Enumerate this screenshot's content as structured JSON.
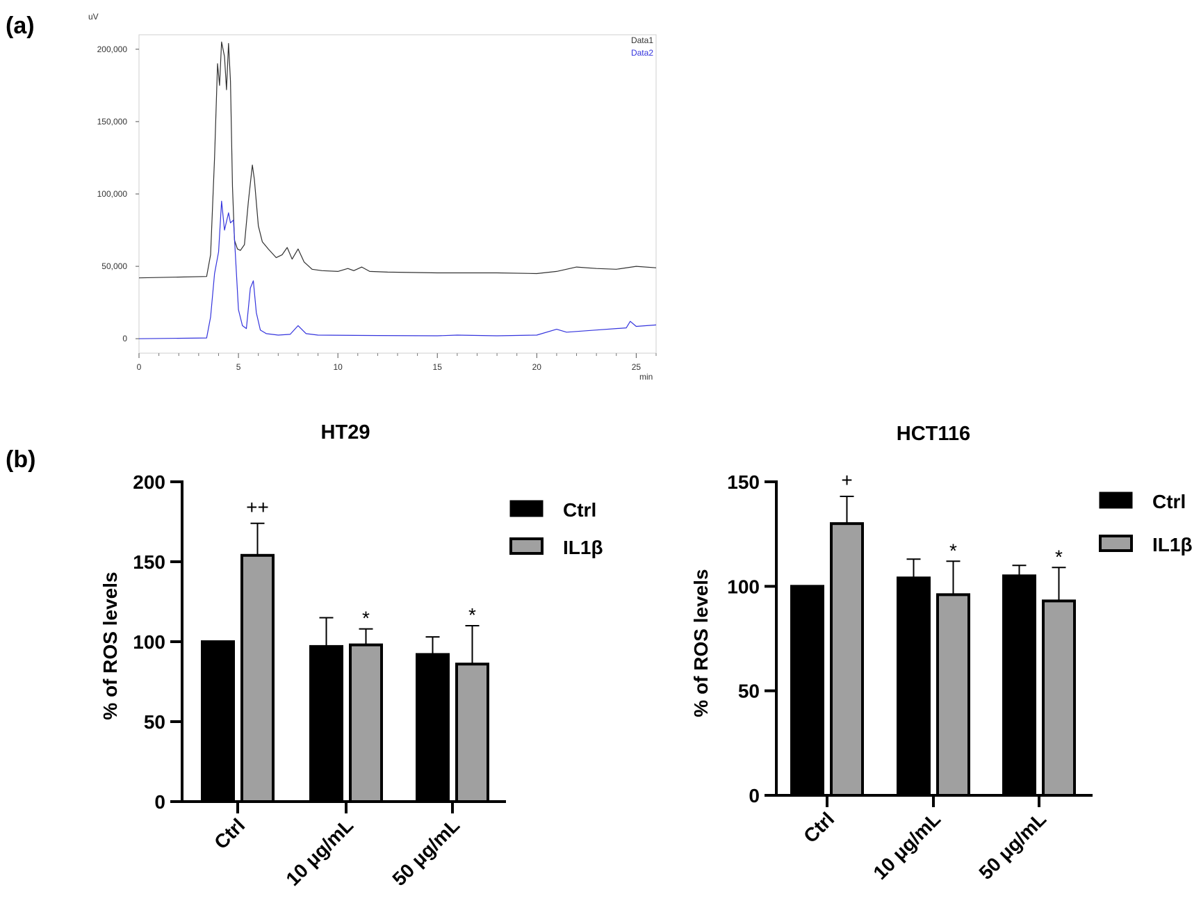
{
  "panel_labels": {
    "a": "(a)",
    "b": "(b)"
  },
  "colors": {
    "data1": "#303030",
    "data2": "#3333dd",
    "ctrl_bar": "#000000",
    "il1b_bar": "#a0a0a0"
  },
  "chart_data": [
    {
      "type": "line",
      "id": "hplc",
      "title": "",
      "xlabel": "min",
      "ylabel": "uV",
      "xlim": [
        0,
        26
      ],
      "ylim": [
        -10000,
        210000
      ],
      "xticks": [
        0,
        5,
        10,
        15,
        20,
        25
      ],
      "yticks": [
        0,
        50000,
        100000,
        150000,
        200000
      ],
      "ytick_labels": [
        "0",
        "50,000",
        "100,000",
        "150,000",
        "200,000"
      ],
      "legend": [
        "Data1",
        "Data2"
      ],
      "series": [
        {
          "name": "Data1",
          "x": [
            0,
            3.4,
            3.6,
            3.8,
            3.95,
            4.05,
            4.15,
            4.3,
            4.4,
            4.5,
            4.6,
            4.7,
            4.8,
            4.95,
            5.1,
            5.3,
            5.5,
            5.7,
            5.8,
            6.0,
            6.2,
            6.5,
            6.9,
            7.2,
            7.45,
            7.7,
            8.0,
            8.3,
            8.7,
            9.2,
            10.0,
            10.5,
            10.8,
            11.2,
            11.6,
            12.5,
            15,
            18,
            20,
            21,
            22,
            23,
            24,
            25,
            26
          ],
          "y": [
            42000,
            43000,
            58000,
            125000,
            190000,
            175000,
            205000,
            195000,
            172000,
            204000,
            178000,
            105000,
            68000,
            62000,
            61000,
            65000,
            95000,
            120000,
            110000,
            78000,
            67000,
            62000,
            56000,
            58000,
            63000,
            55000,
            62000,
            53000,
            48000,
            47000,
            46500,
            48500,
            47000,
            49500,
            46500,
            46000,
            45500,
            45500,
            45000,
            46500,
            49500,
            48500,
            48000,
            50000,
            49000
          ]
        },
        {
          "name": "Data2",
          "x": [
            0,
            3.4,
            3.6,
            3.8,
            4.0,
            4.15,
            4.3,
            4.5,
            4.6,
            4.75,
            4.9,
            5.0,
            5.2,
            5.4,
            5.6,
            5.75,
            5.9,
            6.1,
            6.4,
            7.0,
            7.6,
            8.0,
            8.4,
            9.0,
            12,
            15,
            16,
            18,
            20,
            21,
            21.5,
            23,
            24.5,
            24.7,
            25,
            26
          ],
          "y": [
            0,
            500,
            15000,
            45000,
            60000,
            95000,
            75000,
            87000,
            80000,
            82000,
            45000,
            20000,
            9000,
            7000,
            35000,
            40000,
            18000,
            6000,
            3500,
            2500,
            3000,
            9000,
            3500,
            2500,
            2200,
            2000,
            2500,
            2000,
            2500,
            6500,
            4500,
            6000,
            7500,
            12000,
            8500,
            9500
          ]
        }
      ]
    },
    {
      "type": "bar",
      "id": "ht29",
      "title": "HT29",
      "ylabel": "% of ROS levels",
      "ylim": [
        0,
        200
      ],
      "yticks": [
        0,
        50,
        100,
        150,
        200
      ],
      "categories": [
        "Ctrl",
        "10 μg/mL",
        "50 μg/mL"
      ],
      "series": [
        {
          "name": "Ctrl",
          "values": [
            100,
            97,
            92
          ],
          "errors": [
            0,
            18,
            11
          ]
        },
        {
          "name": "IL1β",
          "values": [
            154,
            98,
            86
          ],
          "errors": [
            20,
            10,
            24
          ]
        }
      ],
      "annotations": [
        "++",
        "*",
        "*"
      ],
      "legend": [
        "Ctrl",
        "IL1β"
      ]
    },
    {
      "type": "bar",
      "id": "hct116",
      "title": "HCT116",
      "ylabel": "% of ROS levels",
      "ylim": [
        0,
        150
      ],
      "yticks": [
        0,
        50,
        100,
        150
      ],
      "categories": [
        "Ctrl",
        "10 μg/mL",
        "50 μg/mL"
      ],
      "series": [
        {
          "name": "Ctrl",
          "values": [
            100,
            104,
            105
          ],
          "errors": [
            0,
            9,
            5
          ]
        },
        {
          "name": "IL1β",
          "values": [
            130,
            96,
            93
          ],
          "errors": [
            13,
            16,
            16
          ]
        }
      ],
      "annotations": [
        "+",
        "*",
        "*"
      ],
      "legend": [
        "Ctrl",
        "IL1β"
      ]
    }
  ]
}
